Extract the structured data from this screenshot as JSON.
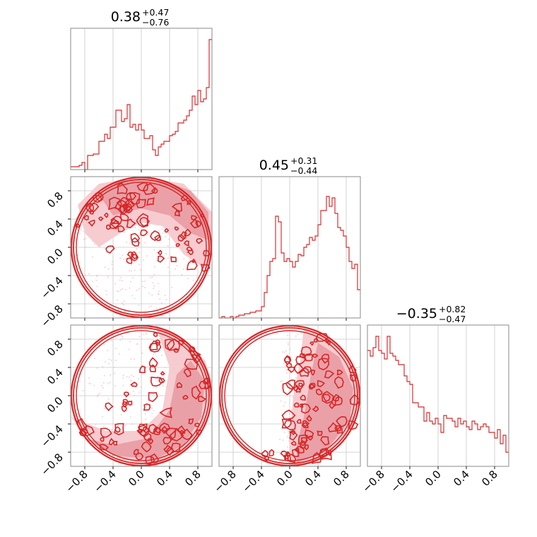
{
  "chart_data": {
    "type": "corner",
    "color": "#d62728",
    "fill_colors": [
      "#f6ccd0",
      "#eaa0a7"
    ],
    "range": [
      -1.0,
      1.0
    ],
    "grid": true,
    "ticks": [
      -0.8,
      -0.4,
      0.0,
      0.4,
      0.8
    ],
    "tick_labels": [
      "−0.8",
      "−0.4",
      "0.0",
      "0.4",
      "0.8"
    ],
    "params": [
      {
        "id": "p0",
        "median": "0.38",
        "plus": "+0.47",
        "minus": "−0.76"
      },
      {
        "id": "p1",
        "median": "0.45",
        "plus": "+0.31",
        "minus": "−0.44"
      },
      {
        "id": "p2",
        "median": "−0.35",
        "plus": "+0.82",
        "minus": "−0.47"
      }
    ],
    "histograms": [
      {
        "param": "p0",
        "bins": 50,
        "values": [
          0.02,
          0.02,
          0.02,
          0.03,
          0.05,
          0.0,
          0.1,
          0.1,
          0.11,
          0.11,
          0.2,
          0.2,
          0.25,
          0.22,
          0.3,
          0.3,
          0.42,
          0.42,
          0.34,
          0.36,
          0.46,
          0.3,
          0.32,
          0.28,
          0.32,
          0.28,
          0.22,
          0.22,
          0.24,
          0.14,
          0.1,
          0.16,
          0.18,
          0.2,
          0.2,
          0.24,
          0.25,
          0.27,
          0.33,
          0.33,
          0.35,
          0.38,
          0.42,
          0.52,
          0.46,
          0.56,
          0.48,
          0.5,
          0.58,
          0.92
        ]
      },
      {
        "param": "p1",
        "bins": 50,
        "values": [
          0.0,
          0.01,
          0.0,
          0.0,
          0.01,
          0.0,
          0.01,
          0.02,
          0.02,
          0.03,
          0.03,
          0.04,
          0.04,
          0.05,
          0.05,
          0.08,
          0.18,
          0.3,
          0.4,
          0.42,
          0.72,
          0.68,
          0.46,
          0.4,
          0.42,
          0.4,
          0.36,
          0.4,
          0.45,
          0.44,
          0.5,
          0.52,
          0.57,
          0.55,
          0.58,
          0.66,
          0.76,
          0.76,
          0.86,
          0.79,
          0.85,
          0.74,
          0.64,
          0.62,
          0.58,
          0.5,
          0.4,
          0.35,
          0.38,
          0.2
        ]
      },
      {
        "param": "p2",
        "bins": 50,
        "values": [
          0.82,
          0.78,
          0.84,
          0.92,
          0.82,
          0.8,
          0.76,
          0.92,
          0.8,
          0.78,
          0.75,
          0.72,
          0.72,
          0.64,
          0.6,
          0.58,
          0.45,
          0.45,
          0.42,
          0.42,
          0.32,
          0.38,
          0.32,
          0.3,
          0.34,
          0.3,
          0.24,
          0.36,
          0.34,
          0.34,
          0.32,
          0.28,
          0.34,
          0.3,
          0.32,
          0.28,
          0.26,
          0.32,
          0.3,
          0.26,
          0.28,
          0.3,
          0.28,
          0.24,
          0.24,
          0.2,
          0.26,
          0.16,
          0.22,
          0.1
        ]
      }
    ],
    "panels_2d": [
      {
        "x": "p0",
        "y": "p1"
      },
      {
        "x": "p0",
        "y": "p2"
      },
      {
        "x": "p1",
        "y": "p2"
      }
    ]
  }
}
